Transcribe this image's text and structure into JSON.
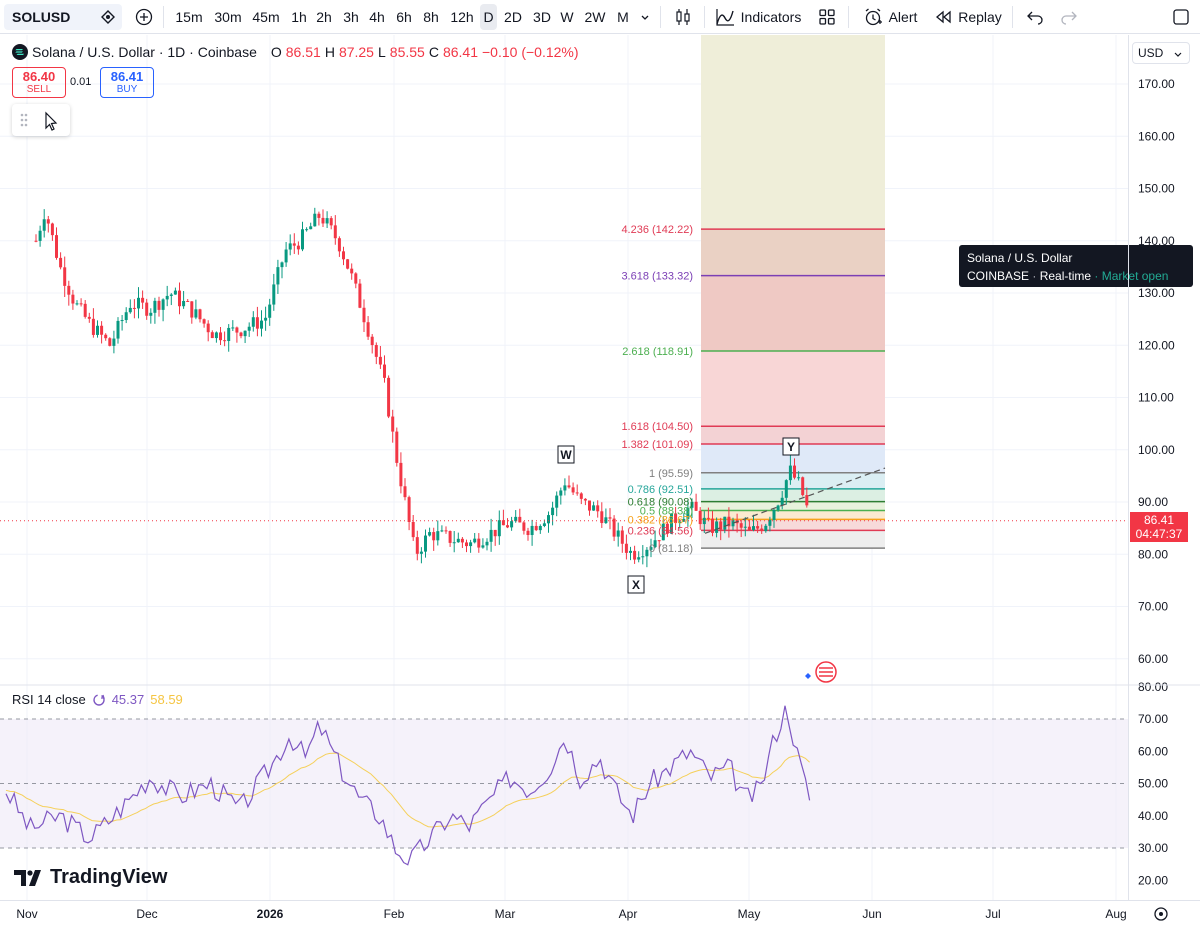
{
  "toolbar": {
    "symbol": "SOLUSD",
    "intervals": [
      "15m",
      "30m",
      "45m",
      "1h",
      "2h",
      "3h",
      "4h",
      "6h",
      "8h",
      "12h",
      "D",
      "2D",
      "3D",
      "W",
      "2W",
      "M"
    ],
    "active_interval": "D",
    "indicators_label": "Indicators",
    "alert_label": "Alert",
    "replay_label": "Replay"
  },
  "legend": {
    "title": "Solana / U.S. Dollar · 1D · Coinbase",
    "o_label": "O",
    "o_value": "86.51",
    "h_label": "H",
    "h_value": "87.25",
    "l_label": "L",
    "l_value": "85.55",
    "c_label": "C",
    "c_value": "86.41",
    "change": "−0.10 (−0.12%)"
  },
  "trade": {
    "sell_price": "86.40",
    "sell_label": "SELL",
    "spread": "0.01",
    "buy_price": "86.41",
    "buy_label": "BUY"
  },
  "tooltip": {
    "line1": "Solana / U.S. Dollar",
    "exchange": "COINBASE",
    "sep": "·",
    "realtime": "Real-time",
    "status": "Market open"
  },
  "price_axis": {
    "currency": "USD",
    "labels": [
      "170.00",
      "160.00",
      "150.00",
      "140.00",
      "130.00",
      "120.00",
      "110.00",
      "100.00",
      "90.00",
      "80.00",
      "70.00",
      "60.00"
    ],
    "last_price": "86.41",
    "countdown": "04:47:37"
  },
  "rsi": {
    "title": "RSI 14 close",
    "value": "45.37",
    "ma_value": "58.59",
    "labels": [
      "80.00",
      "70.00",
      "60.00",
      "50.00",
      "40.00",
      "30.00",
      "20.00"
    ],
    "colors": {
      "rsi": "#7e57c2",
      "ma": "#f5d05a"
    }
  },
  "time_axis": {
    "labels": [
      "Nov",
      "Dec",
      "2026",
      "Feb",
      "Mar",
      "Apr",
      "May",
      "Jun",
      "Jul",
      "Aug"
    ]
  },
  "fib": {
    "levels": [
      {
        "label": "4.236 (142.22)",
        "price": 142.22,
        "color": "#e03b55"
      },
      {
        "label": "3.618 (133.32)",
        "price": 133.32,
        "color": "#7b3fb5"
      },
      {
        "label": "2.618 (118.91)",
        "price": 118.91,
        "color": "#4caf50"
      },
      {
        "label": "1.618 (104.50)",
        "price": 104.5,
        "color": "#e03b55"
      },
      {
        "label": "1.382 (101.09)",
        "price": 101.09,
        "color": "#e03b55"
      },
      {
        "label": "1 (95.59)",
        "price": 95.59,
        "color": "#808080"
      },
      {
        "label": "0.786 (92.51)",
        "price": 92.51,
        "color": "#26a69a"
      },
      {
        "label": "0.618 (90.08)",
        "price": 90.08,
        "color": "#2e7d32"
      },
      {
        "label": "0.5 (88.38)",
        "price": 88.38,
        "color": "#4caf50"
      },
      {
        "label": "0.382 (86.67)",
        "price": 86.67,
        "color": "#f7a21b"
      },
      {
        "label": "0.236 (84.56)",
        "price": 84.56,
        "color": "#e03b55"
      },
      {
        "label": "0 (81.18)",
        "price": 81.18,
        "color": "#808080"
      }
    ]
  },
  "wave_labels": [
    "W",
    "X",
    "Y"
  ],
  "branding": "TradingView",
  "colors": {
    "up": "#089981",
    "down": "#f23645",
    "accent": "#2962ff"
  }
}
